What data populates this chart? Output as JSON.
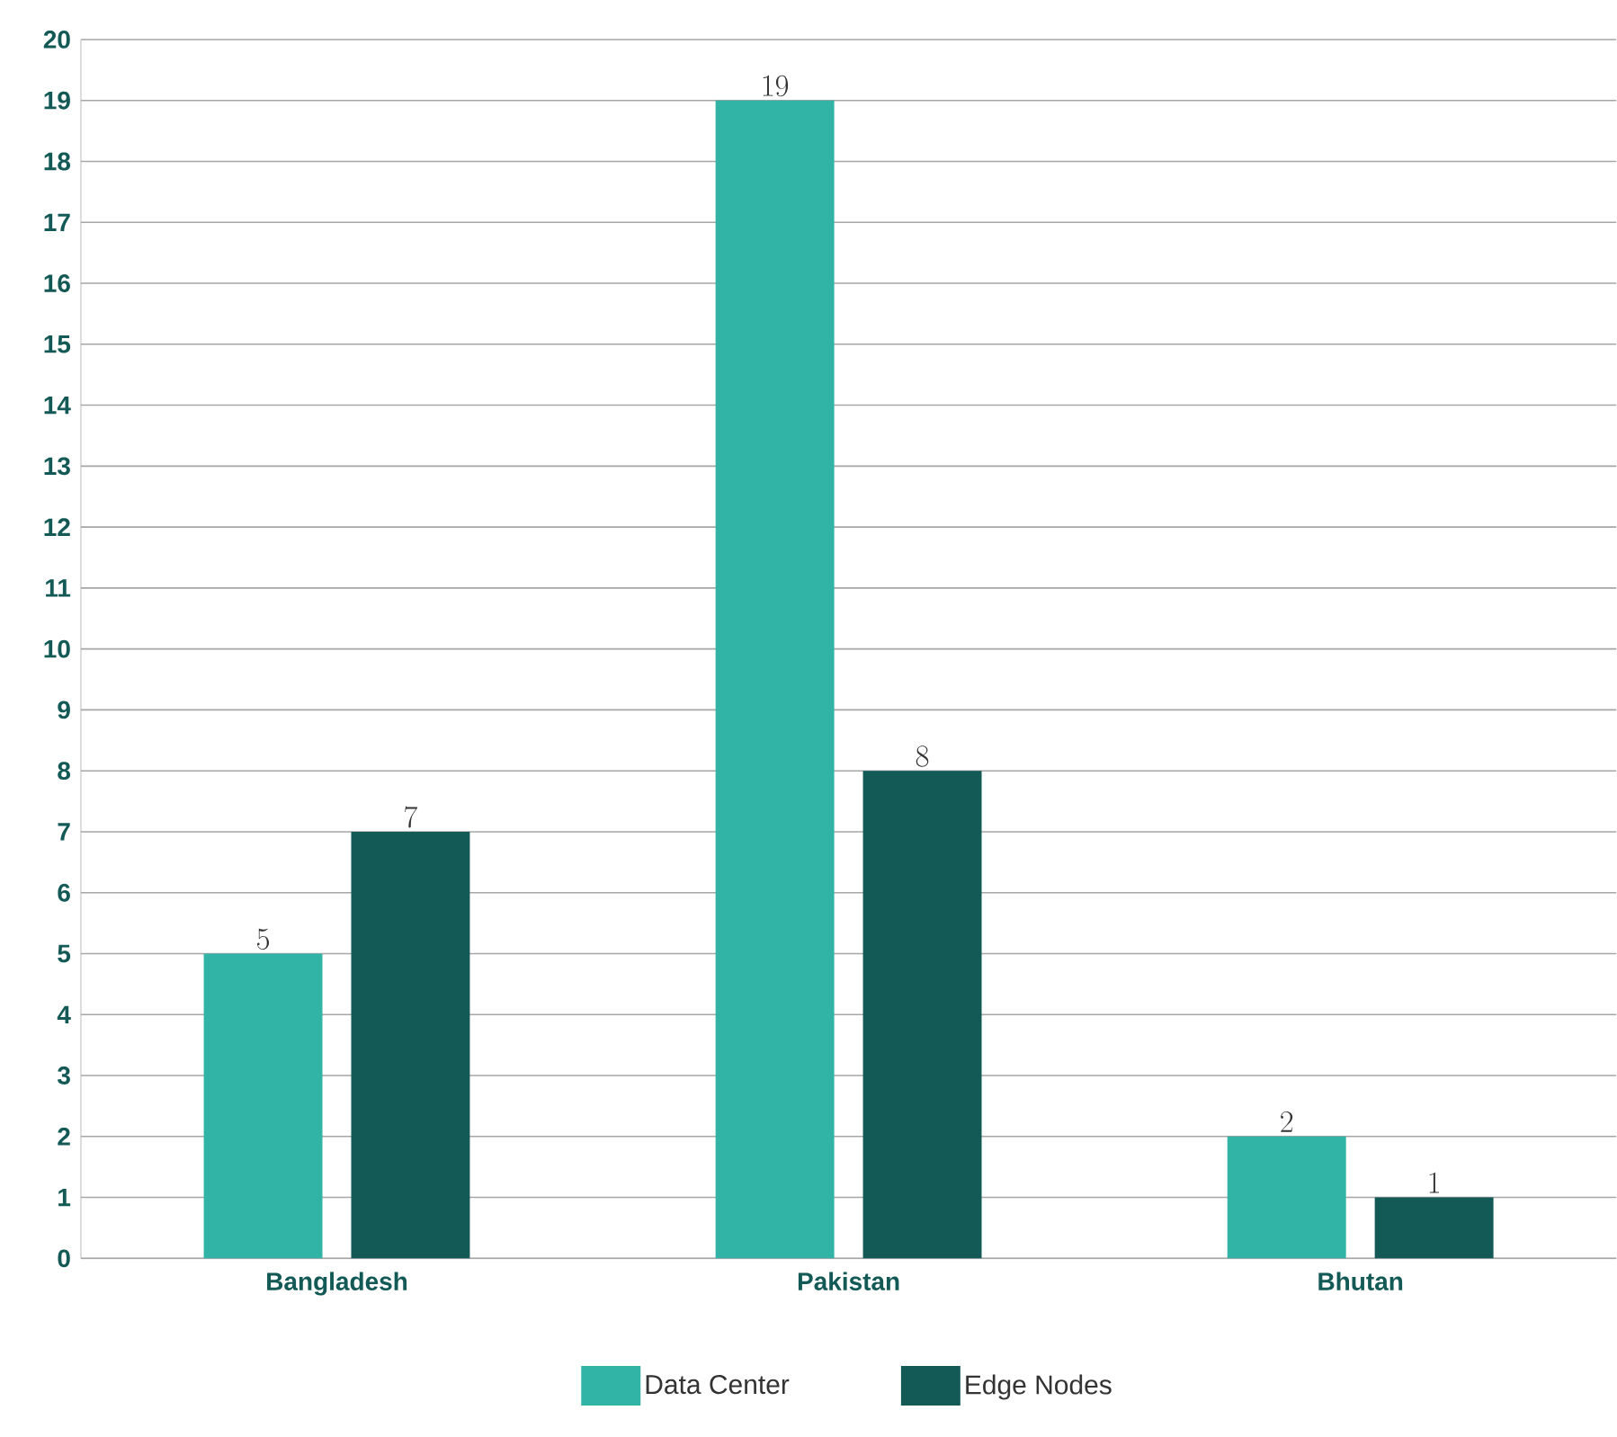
{
  "chart_data": {
    "type": "bar",
    "categories": [
      "Bangladesh",
      "Pakistan",
      "Bhutan"
    ],
    "series": [
      {
        "name": "Data Center",
        "color": "#31b3a5",
        "values": [
          5,
          19,
          2
        ]
      },
      {
        "name": "Edge Nodes",
        "color": "#135956",
        "values": [
          7,
          8,
          1
        ]
      }
    ],
    "ylim": [
      0,
      20
    ],
    "yticks": [
      0,
      1,
      2,
      3,
      4,
      5,
      6,
      7,
      8,
      9,
      10,
      11,
      12,
      13,
      14,
      15,
      16,
      17,
      18,
      19,
      20
    ],
    "grid": "y",
    "legend": "bottom",
    "data_labels": true
  }
}
